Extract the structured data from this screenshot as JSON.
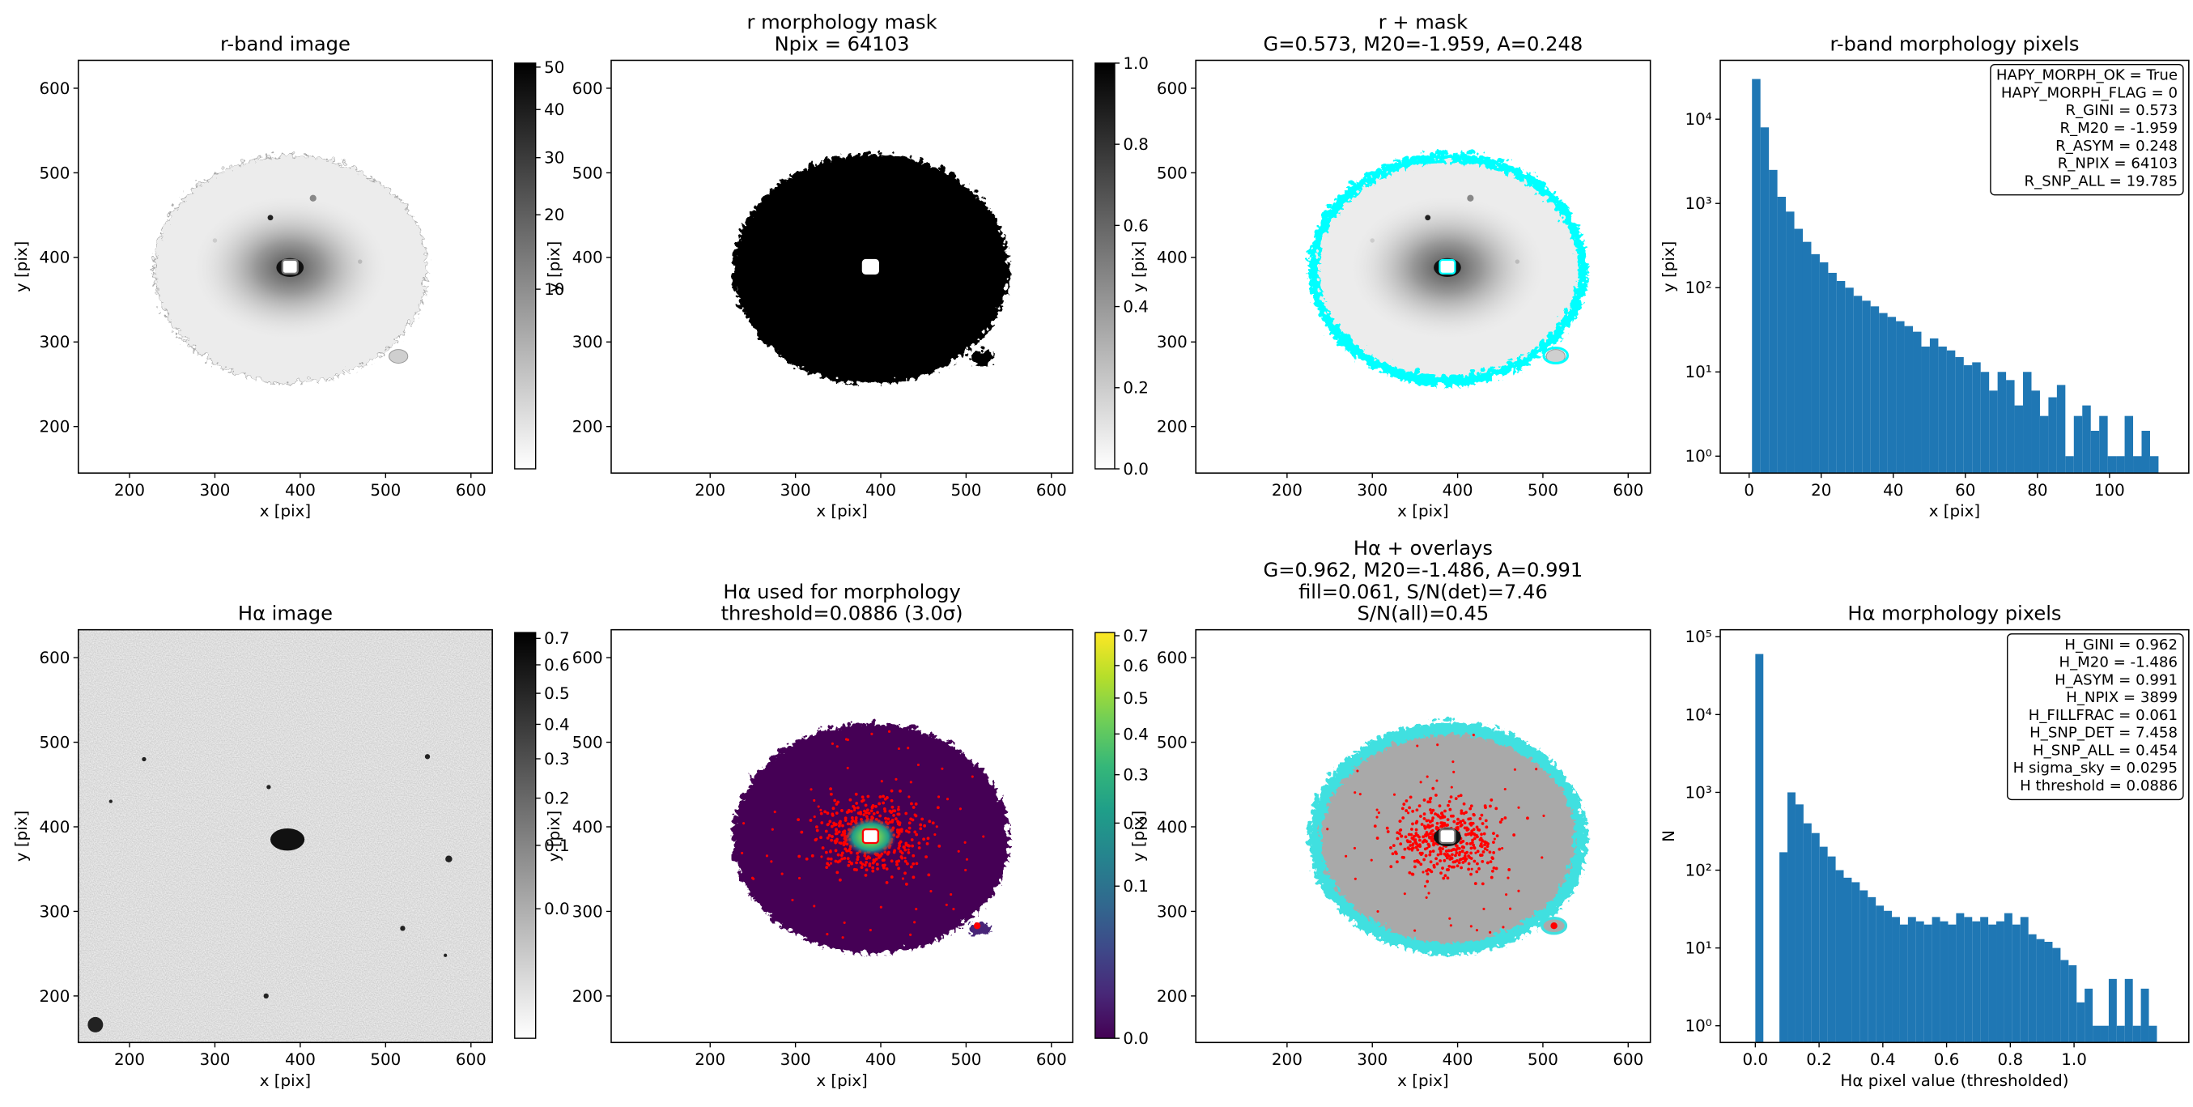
{
  "chart_data": [
    {
      "type": "image",
      "title": [
        "r-band image"
      ],
      "xlabel": "x [pix]",
      "ylabel": "y [pix]",
      "xlim": [
        140,
        625
      ],
      "ylim": [
        145,
        633
      ],
      "xticks": [
        200,
        300,
        400,
        500,
        600
      ],
      "yticks": [
        200,
        300,
        400,
        500,
        600
      ],
      "cmap": "gray_r",
      "colorbar": {
        "lim": [
          0,
          51
        ],
        "scale": "sqrt",
        "ticks": [
          10,
          20,
          30,
          40,
          50
        ]
      }
    },
    {
      "type": "image",
      "title": [
        "r morphology mask",
        "Npix = 64103"
      ],
      "xlabel": "x [pix]",
      "ylabel": "y [pix]",
      "xlim": [
        84,
        625
      ],
      "ylim": [
        145,
        633
      ],
      "xticks": [
        200,
        300,
        400,
        500,
        600
      ],
      "yticks": [
        200,
        300,
        400,
        500,
        600
      ],
      "cmap": "gray_r",
      "colorbar": {
        "lim": [
          0,
          1
        ],
        "scale": "linear",
        "ticks": [
          {
            "value": 0,
            "label": "0.0"
          },
          0.2,
          0.4,
          0.6,
          0.8,
          {
            "value": 1,
            "label": "1.0"
          }
        ]
      }
    },
    {
      "type": "image",
      "title": [
        "r + mask",
        "G=0.573, M20=-1.959, A=0.248"
      ],
      "xlabel": "x [pix]",
      "ylabel": "y [pix]",
      "xlim": [
        93,
        626
      ],
      "ylim": [
        145,
        633
      ],
      "xticks": [
        200,
        300,
        400,
        500,
        600
      ],
      "yticks": [
        200,
        300,
        400,
        500,
        600
      ]
    },
    {
      "type": "histogram",
      "title": [
        "r-band morphology pixels"
      ],
      "xlabel": "x [pix]",
      "ylabel": "y [pix]",
      "color": "#1f77b4",
      "log_y": true,
      "bins": [
        0.8,
        3.15,
        5.5,
        7.85,
        10.2,
        12.55,
        14.9,
        17.25,
        19.6,
        21.95,
        24.3,
        26.65,
        29,
        31.35,
        33.7,
        36.05,
        38.4,
        40.75,
        43.1,
        45.45,
        47.8,
        50.15,
        52.5,
        54.85,
        57.2,
        59.55,
        61.9,
        64.25,
        66.6,
        68.95,
        71.3,
        73.65,
        76,
        78.35,
        80.7,
        83.05,
        85.4,
        87.75,
        90.1,
        92.45,
        94.8,
        97.15,
        99.5,
        101.85,
        104.2,
        106.55,
        108.9,
        111.25,
        113.6
      ],
      "counts": [
        30000,
        8000,
        2500,
        1200,
        800,
        500,
        350,
        250,
        200,
        150,
        120,
        100,
        80,
        70,
        60,
        50,
        45,
        40,
        35,
        30,
        20,
        25,
        20,
        18,
        15,
        12,
        13,
        10,
        6,
        10,
        8,
        4,
        10,
        6,
        3,
        5,
        7,
        1,
        3,
        4,
        2,
        3,
        1,
        1,
        3,
        1,
        2,
        1
      ],
      "xlim": [
        -8,
        122
      ],
      "xticks": [
        0,
        20,
        40,
        60,
        80,
        100
      ],
      "ylim": [
        0.63,
        50000
      ],
      "yticks": [
        {
          "value": 1,
          "label": "10⁰"
        },
        {
          "value": 10,
          "label": "10¹"
        },
        {
          "value": 100,
          "label": "10²"
        },
        {
          "value": 1000,
          "label": "10³"
        },
        {
          "value": 10000,
          "label": "10⁴"
        }
      ],
      "annotation": [
        "HAPY_MORPH_OK = True",
        "HAPY_MORPH_FLAG = 0",
        "R_GINI = 0.573",
        "R_M20 = -1.959",
        "R_ASYM = 0.248",
        "R_NPIX = 64103",
        "R_SNP_ALL = 19.785"
      ]
    },
    {
      "type": "image",
      "title": [
        "Hα image"
      ],
      "xlabel": "x [pix]",
      "ylabel": "y [pix]",
      "xlim": [
        140,
        625
      ],
      "ylim": [
        145,
        633
      ],
      "xticks": [
        200,
        300,
        400,
        500,
        600
      ],
      "yticks": [
        200,
        300,
        400,
        500,
        600
      ],
      "cmap": "gray_r",
      "colorbar": {
        "lim": [
          -0.082,
          0.723
        ],
        "scale": "sqrt",
        "ticks": [
          {
            "value": 0,
            "label": "0.0"
          },
          0.1,
          0.2,
          0.3,
          0.4,
          0.5,
          0.6,
          0.7
        ]
      }
    },
    {
      "type": "image",
      "title": [
        "Hα used for morphology",
        "threshold=0.0886 (3.0σ)"
      ],
      "xlabel": "x [pix]",
      "ylabel": "y [pix]",
      "xlim": [
        84,
        625
      ],
      "ylim": [
        145,
        633
      ],
      "xticks": [
        200,
        300,
        400,
        500,
        600
      ],
      "yticks": [
        200,
        300,
        400,
        500,
        600
      ],
      "cmap": "viridis",
      "colorbar": {
        "lim": [
          0,
          0.711
        ],
        "scale": "sqrt",
        "ticks": [
          {
            "value": 0,
            "label": "0.0"
          },
          0.1,
          0.2,
          0.3,
          0.4,
          0.5,
          0.6,
          0.7
        ]
      }
    },
    {
      "type": "image",
      "title": [
        "Hα + overlays",
        "G=0.962, M20=-1.486, A=0.991",
        "fill=0.061, S/N(det)=7.46",
        "S/N(all)=0.45"
      ],
      "xlabel": "x [pix]",
      "ylabel": "y [pix]",
      "xlim": [
        93,
        626
      ],
      "ylim": [
        145,
        633
      ],
      "xticks": [
        200,
        300,
        400,
        500,
        600
      ],
      "yticks": [
        200,
        300,
        400,
        500,
        600
      ]
    },
    {
      "type": "histogram",
      "title": [
        "Hα morphology pixels"
      ],
      "xlabel": "Hα pixel value (thresholded)",
      "ylabel": "N",
      "color": "#1f77b4",
      "log_y": true,
      "bins": [
        0,
        0.0252,
        0.0504,
        0.0756,
        0.1008,
        0.126,
        0.1512,
        0.1764,
        0.2016,
        0.2268,
        0.252,
        0.2772,
        0.3024,
        0.3276,
        0.3528,
        0.378,
        0.4032,
        0.4284,
        0.4536,
        0.4788,
        0.504,
        0.5292,
        0.5544,
        0.5796,
        0.6048,
        0.63,
        0.6552,
        0.6804,
        0.7056,
        0.7308,
        0.756,
        0.7812,
        0.8064,
        0.8316,
        0.8568,
        0.882,
        0.9072,
        0.9324,
        0.9576,
        0.9828,
        1.008,
        1.0332,
        1.0584,
        1.0836,
        1.1088,
        1.134,
        1.1592,
        1.1844,
        1.2096,
        1.2348,
        1.26
      ],
      "counts": [
        60000,
        0,
        0,
        170,
        1000,
        700,
        400,
        300,
        200,
        150,
        100,
        80,
        70,
        55,
        45,
        35,
        30,
        25,
        20,
        25,
        22,
        20,
        25,
        22,
        20,
        28,
        25,
        22,
        25,
        20,
        22,
        28,
        20,
        25,
        15,
        13,
        12,
        10,
        7,
        6,
        2,
        3,
        1,
        1,
        4,
        1,
        4,
        1,
        3,
        1
      ],
      "xlim": [
        -0.11,
        1.36
      ],
      "xticks": [
        {
          "value": 0,
          "label": "0.0"
        },
        0.2,
        0.4,
        0.6,
        0.8,
        {
          "value": 1,
          "label": "1.0"
        }
      ],
      "ylim": [
        0.61,
        123000
      ],
      "yticks": [
        {
          "value": 1,
          "label": "10⁰"
        },
        {
          "value": 10,
          "label": "10¹"
        },
        {
          "value": 100,
          "label": "10²"
        },
        {
          "value": 1000,
          "label": "10³"
        },
        {
          "value": 10000,
          "label": "10⁴"
        },
        {
          "value": 100000,
          "label": "10⁵"
        }
      ],
      "annotation": [
        "H_GINI = 0.962",
        "H_M20 = -1.486",
        "H_ASYM = 0.991",
        "H_NPIX = 3899",
        "H_FILLFRAC = 0.061",
        "H_SNP_DET = 7.458",
        "H_SNP_ALL = 0.454",
        "H sigma_sky = 0.0295",
        "H threshold = 0.0886"
      ]
    }
  ]
}
